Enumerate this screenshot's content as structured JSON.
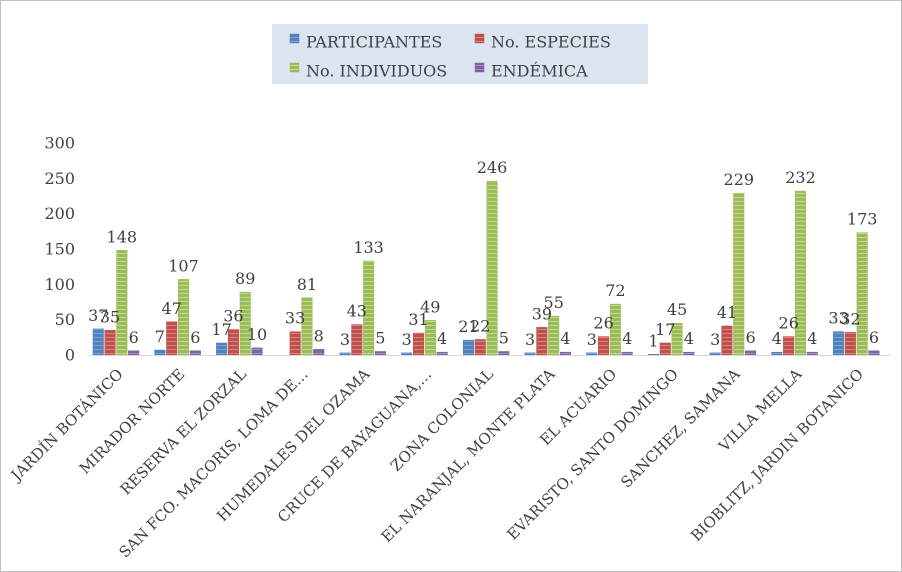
{
  "chart_data": {
    "type": "bar",
    "title": "",
    "xlabel": "",
    "ylabel": "",
    "ylim": [
      0,
      300
    ],
    "yticks": [
      0,
      50,
      100,
      150,
      200,
      250,
      300
    ],
    "grid": false,
    "legend_position": "top",
    "categories": [
      "JARDÍN BOTÁNICO",
      "MIRADOR NORTE",
      "RESERVA EL ZORZAL",
      "SAN FCO. MACORIS, LOMA DE…",
      "HUMEDALES DEL OZAMA",
      "CRUCE DE BAYAGUANA,…",
      "ZONA COLONIAL",
      "EL NARANJAL, MONTE PLATA",
      "EL ACUARIO",
      "EVARISTO, SANTO DOMINGO",
      "SANCHEZ, SAMANA",
      "VILLA MELLA",
      "BIOBLITZ, JARDIN BOTANICO"
    ],
    "series": [
      {
        "name": "PARTICIPANTES",
        "color": "#4f81bd",
        "values": [
          37,
          7,
          17,
          0,
          3,
          3,
          21,
          3,
          3,
          1,
          3,
          4,
          33
        ],
        "labels": [
          "37",
          "7",
          "17",
          "",
          "3",
          "3",
          "21",
          "3",
          "3",
          "1",
          "3",
          "4",
          "33"
        ]
      },
      {
        "name": "No. ESPECIES",
        "color": "#c0504d",
        "values": [
          35,
          47,
          36,
          33,
          43,
          31,
          22,
          39,
          26,
          17,
          41,
          26,
          32
        ],
        "labels": [
          "35",
          "47",
          "36",
          "33",
          "43",
          "31",
          "22",
          "39",
          "26",
          "17",
          "41",
          "26",
          "32"
        ]
      },
      {
        "name": "No. INDIVIDUOS",
        "color": "#9bbb59",
        "values": [
          148,
          107,
          89,
          81,
          133,
          49,
          246,
          55,
          72,
          45,
          229,
          232,
          173
        ],
        "labels": [
          "148",
          "107",
          "89",
          "81",
          "133",
          "49",
          "246",
          "55",
          "72",
          "45",
          "229",
          "232",
          "173"
        ]
      },
      {
        "name": "ENDÉMICA",
        "color": "#8064a2",
        "values": [
          6,
          6,
          10,
          8,
          5,
          4,
          5,
          4,
          4,
          4,
          6,
          4,
          6
        ],
        "labels": [
          "6",
          "6",
          "10",
          "8",
          "5",
          "4",
          "5",
          "4",
          "4",
          "4",
          "6",
          "4",
          "6"
        ]
      }
    ]
  }
}
